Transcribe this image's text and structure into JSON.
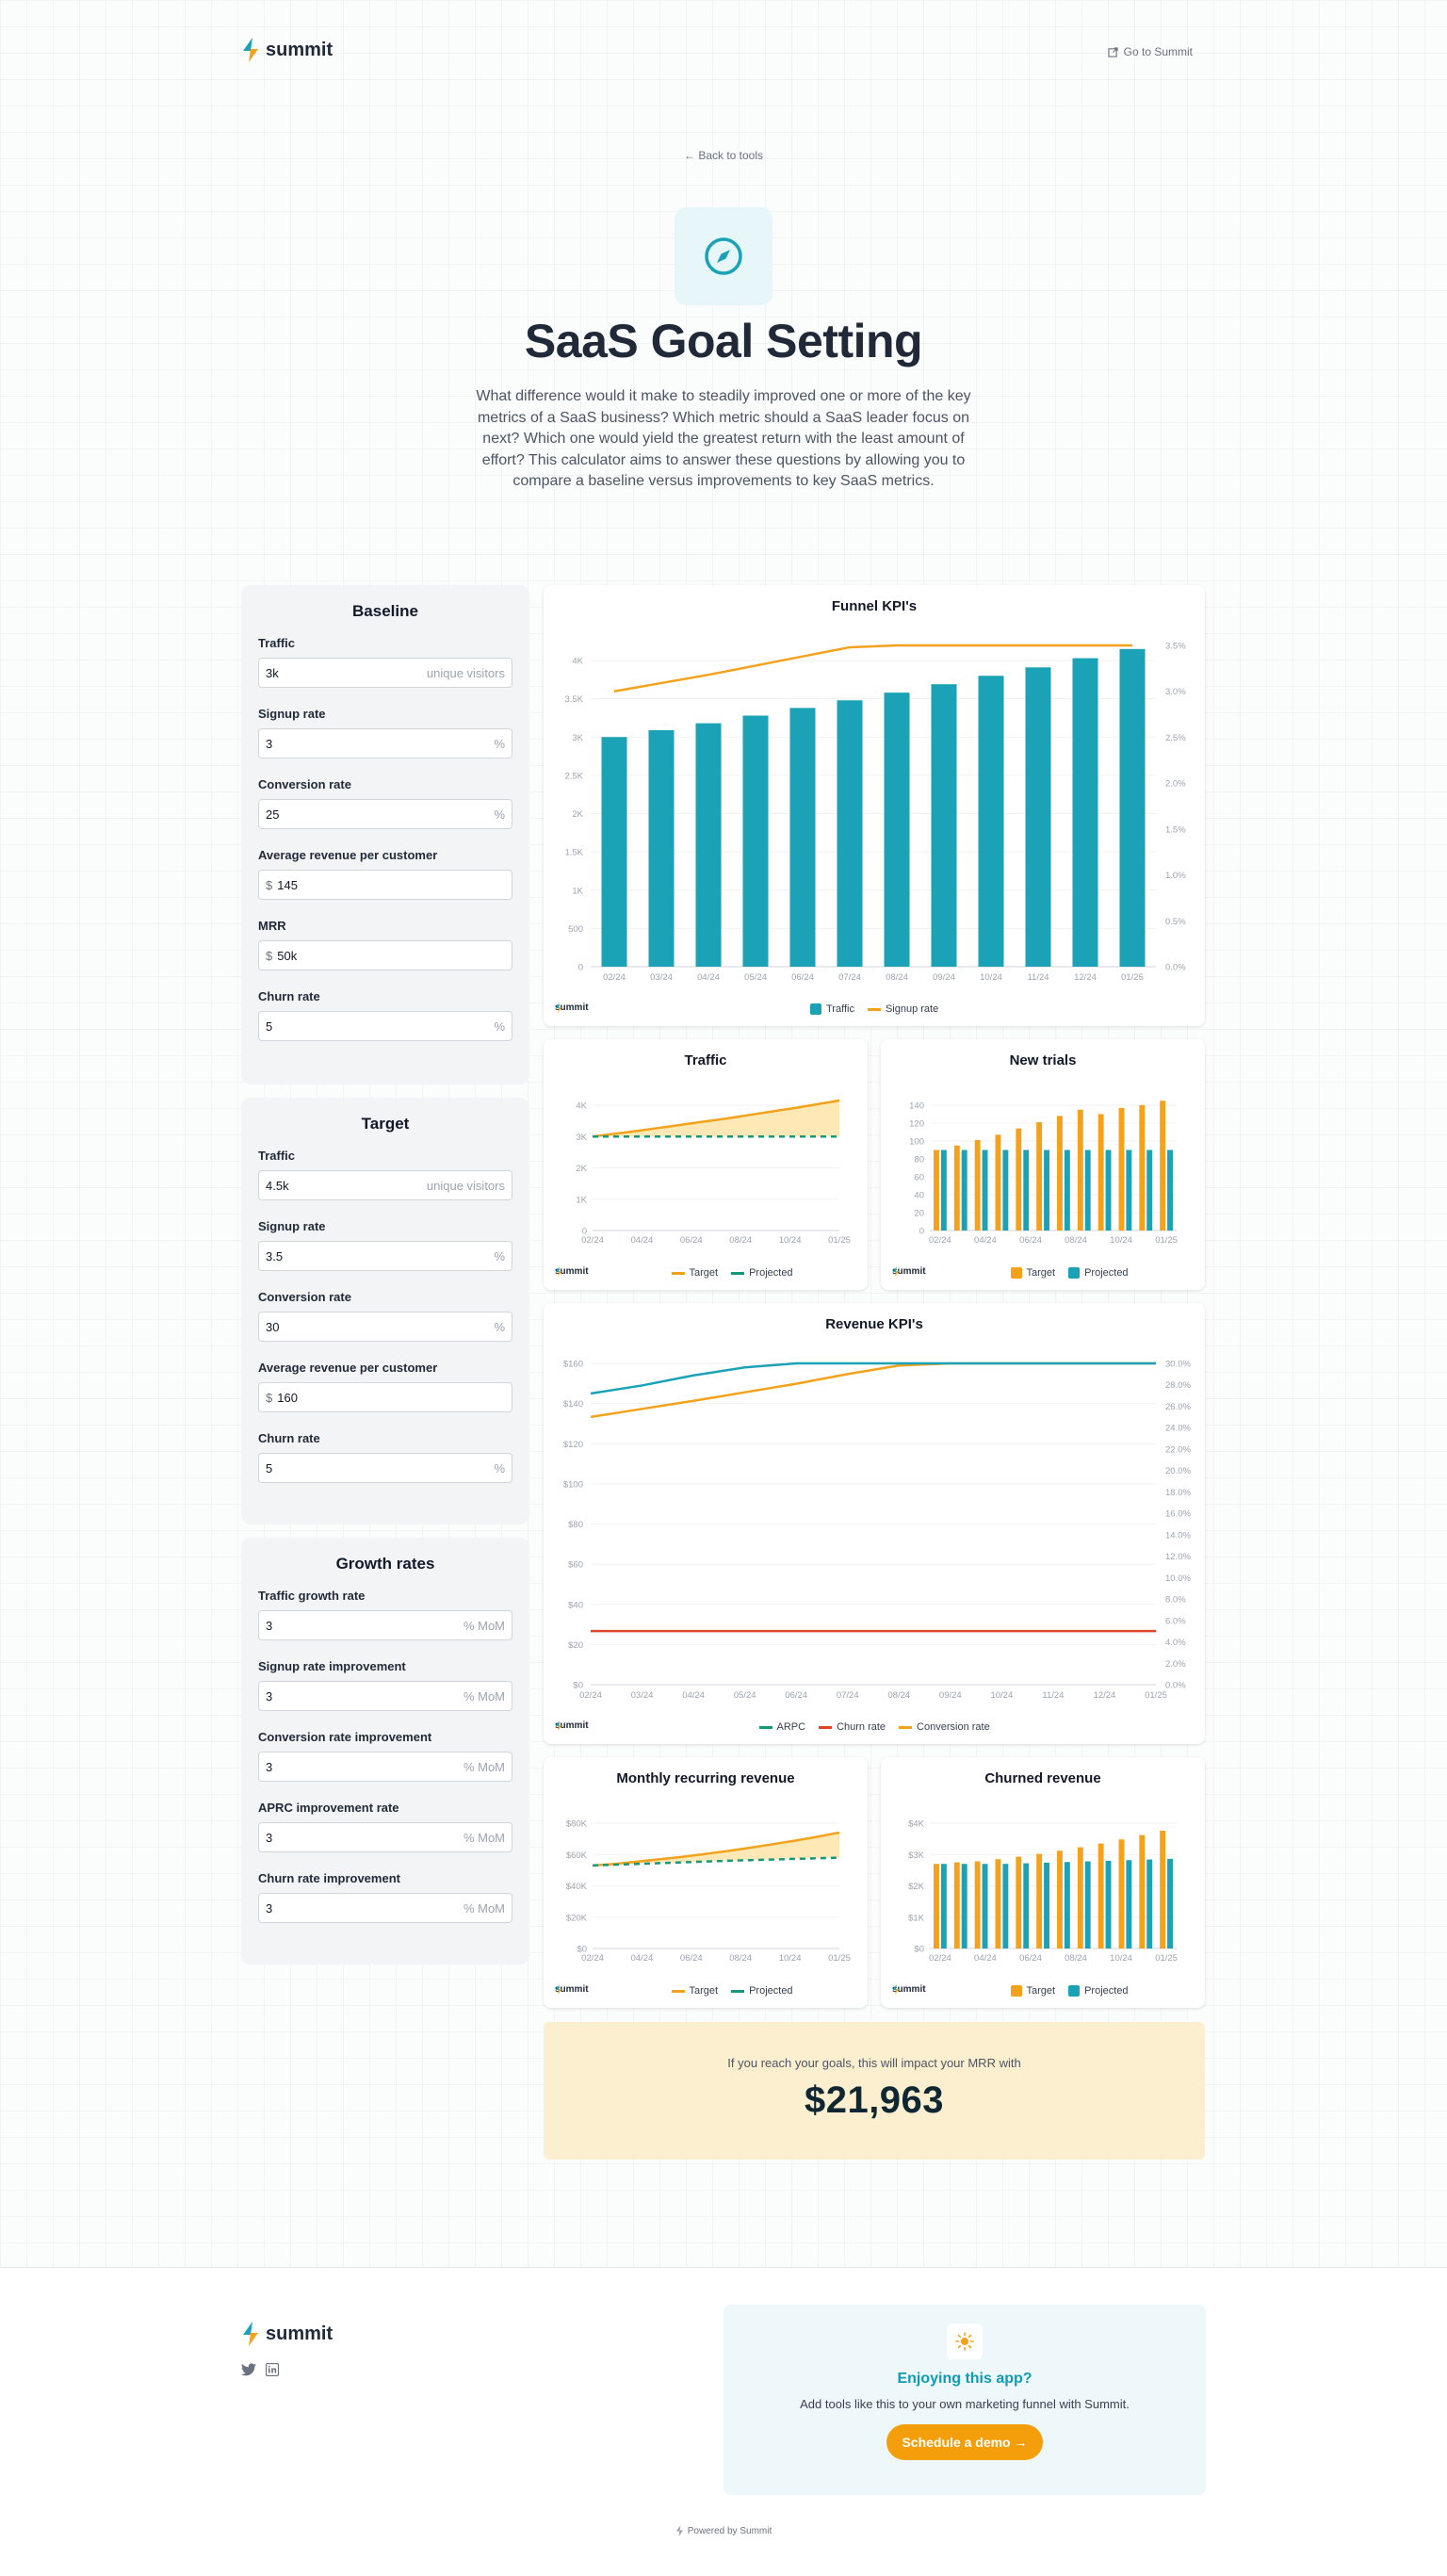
{
  "header": {
    "brand": "summit",
    "goto_label": "Go to Summit"
  },
  "hero": {
    "back_label": "Back to tools",
    "title": "SaaS Goal Setting",
    "description": "What difference would it make to steadily improved one or more of the key metrics of a SaaS business? Which metric should a SaaS leader focus on next? Which one would yield the greatest return with the least amount of effort? This calculator aims to answer these questions by allowing you to compare a baseline versus improvements to key SaaS metrics."
  },
  "baseline": {
    "title": "Baseline",
    "fields": [
      {
        "label": "Traffic",
        "value": "3k",
        "prefix": "",
        "suffix": "unique visitors"
      },
      {
        "label": "Signup rate",
        "value": "3",
        "prefix": "",
        "suffix": "%"
      },
      {
        "label": "Conversion rate",
        "value": "25",
        "prefix": "",
        "suffix": "%"
      },
      {
        "label": "Average revenue per customer",
        "value": "145",
        "prefix": "$",
        "suffix": ""
      },
      {
        "label": "MRR",
        "value": "50k",
        "prefix": "$",
        "suffix": ""
      },
      {
        "label": "Churn rate",
        "value": "5",
        "prefix": "",
        "suffix": "%"
      }
    ]
  },
  "target": {
    "title": "Target",
    "fields": [
      {
        "label": "Traffic",
        "value": "4.5k",
        "prefix": "",
        "suffix": "unique visitors"
      },
      {
        "label": "Signup rate",
        "value": "3.5",
        "prefix": "",
        "suffix": "%"
      },
      {
        "label": "Conversion rate",
        "value": "30",
        "prefix": "",
        "suffix": "%"
      },
      {
        "label": "Average revenue per customer",
        "value": "160",
        "prefix": "$",
        "suffix": ""
      },
      {
        "label": "Churn rate",
        "value": "5",
        "prefix": "",
        "suffix": "%"
      }
    ]
  },
  "growth": {
    "title": "Growth rates",
    "fields": [
      {
        "label": "Traffic growth rate",
        "value": "3",
        "prefix": "",
        "suffix": "% MoM"
      },
      {
        "label": "Signup rate improvement",
        "value": "3",
        "prefix": "",
        "suffix": "% MoM"
      },
      {
        "label": "Conversion rate improvement",
        "value": "3",
        "prefix": "",
        "suffix": "% MoM"
      },
      {
        "label": "APRC improvement rate",
        "value": "3",
        "prefix": "",
        "suffix": "% MoM"
      },
      {
        "label": "Churn rate improvement",
        "value": "3",
        "prefix": "",
        "suffix": "% MoM"
      }
    ]
  },
  "colors": {
    "teal": "#1ba2b6",
    "orange": "#f4a11c",
    "red": "#e0452b",
    "fill": "#fde8b6"
  },
  "chart_data": [
    {
      "id": "funnel",
      "type": "bar",
      "title": "Funnel KPI's",
      "categories": [
        "02/24",
        "03/24",
        "04/24",
        "05/24",
        "06/24",
        "07/24",
        "08/24",
        "09/24",
        "10/24",
        "11/24",
        "12/24",
        "01/25"
      ],
      "series": [
        {
          "name": "Traffic",
          "type": "bar",
          "axis": "left",
          "values": [
            3000,
            3090,
            3180,
            3280,
            3380,
            3480,
            3580,
            3690,
            3800,
            3910,
            4030,
            4150
          ]
        },
        {
          "name": "Signup rate",
          "type": "line",
          "axis": "right",
          "values": [
            3.0,
            3.09,
            3.18,
            3.28,
            3.38,
            3.48,
            3.5,
            3.5,
            3.5,
            3.5,
            3.5,
            3.5
          ]
        }
      ],
      "ylim": [
        0,
        4000
      ],
      "y_ticks": [
        "0",
        "500",
        "1K",
        "1.5K",
        "2K",
        "2.5K",
        "3K",
        "3.5K",
        "4K"
      ],
      "y2lim": [
        0,
        3.5
      ],
      "y2_ticks": [
        "0.0%",
        "0.5%",
        "1.0%",
        "1.5%",
        "2.0%",
        "2.5%",
        "3.0%",
        "3.5%"
      ],
      "legend": "bottom"
    },
    {
      "id": "traffic",
      "type": "area",
      "title": "Traffic",
      "x_ticks": [
        "02/24",
        "04/24",
        "06/24",
        "08/24",
        "10/24",
        "01/25"
      ],
      "series": [
        {
          "name": "Target",
          "values": [
            3000,
            3090,
            3180,
            3280,
            3380,
            3480,
            3580,
            3690,
            3800,
            3910,
            4030,
            4150
          ]
        },
        {
          "name": "Projected",
          "values": [
            3000,
            3000,
            3000,
            3000,
            3000,
            3000,
            3000,
            3000,
            3000,
            3000,
            3000,
            3000
          ]
        }
      ],
      "ylim": [
        0,
        4000
      ],
      "y_ticks": [
        "0",
        "1K",
        "2K",
        "3K",
        "4K"
      ],
      "legend": "bottom"
    },
    {
      "id": "trials",
      "type": "bar",
      "title": "New trials",
      "x_ticks": [
        "02/24",
        "04/24",
        "06/24",
        "08/24",
        "10/24",
        "01/25"
      ],
      "series": [
        {
          "name": "Target",
          "values": [
            90,
            95,
            101,
            107,
            114,
            121,
            128,
            135,
            130,
            137,
            140,
            145
          ]
        },
        {
          "name": "Projected",
          "values": [
            90,
            90,
            90,
            90,
            90,
            90,
            90,
            90,
            90,
            90,
            90,
            90
          ]
        }
      ],
      "ylim": [
        0,
        140
      ],
      "y_ticks": [
        "0",
        "20",
        "40",
        "60",
        "80",
        "100",
        "120",
        "140"
      ],
      "legend": "bottom"
    },
    {
      "id": "revenue",
      "type": "line",
      "title": "Revenue KPI's",
      "categories": [
        "02/24",
        "03/24",
        "04/24",
        "05/24",
        "06/24",
        "07/24",
        "08/24",
        "09/24",
        "10/24",
        "11/24",
        "12/24",
        "01/25"
      ],
      "series": [
        {
          "name": "ARPC",
          "axis": "left",
          "values": [
            145,
            149,
            154,
            158,
            160,
            160,
            160,
            160,
            160,
            160,
            160,
            160
          ]
        },
        {
          "name": "Churn rate",
          "axis": "right",
          "values": [
            5,
            5,
            5,
            5,
            5,
            5,
            5,
            5,
            5,
            5,
            5,
            5
          ]
        },
        {
          "name": "Conversion rate",
          "axis": "right",
          "values": [
            25,
            25.75,
            26.5,
            27.3,
            28.1,
            29,
            29.8,
            30,
            30,
            30,
            30,
            30
          ]
        }
      ],
      "ylim": [
        0,
        160
      ],
      "y_ticks": [
        "$0",
        "$20",
        "$40",
        "$60",
        "$80",
        "$100",
        "$120",
        "$140",
        "$160"
      ],
      "y2lim": [
        0,
        30
      ],
      "y2_ticks": [
        "0.0%",
        "2.0%",
        "4.0%",
        "6.0%",
        "8.0%",
        "10.0%",
        "12.0%",
        "14.0%",
        "16.0%",
        "18.0%",
        "20.0%",
        "22.0%",
        "24.0%",
        "26.0%",
        "28.0%",
        "30.0%"
      ],
      "legend": "bottom"
    },
    {
      "id": "mrr",
      "type": "area",
      "title": "Monthly recurring revenue",
      "x_ticks": [
        "02/24",
        "04/24",
        "06/24",
        "08/24",
        "10/24",
        "01/25"
      ],
      "series": [
        {
          "name": "Target",
          "values": [
            53000,
            54000,
            55500,
            57000,
            58500,
            60300,
            62200,
            64300,
            66500,
            68800,
            71300,
            74000
          ]
        },
        {
          "name": "Projected",
          "values": [
            53000,
            53500,
            54000,
            54500,
            55000,
            55500,
            56000,
            56400,
            56800,
            57200,
            57600,
            58000
          ]
        }
      ],
      "ylim": [
        0,
        80000
      ],
      "y_ticks": [
        "$0",
        "$20K",
        "$40K",
        "$60K",
        "$80K"
      ],
      "legend": "bottom"
    },
    {
      "id": "churned",
      "type": "bar",
      "title": "Churned revenue",
      "x_ticks": [
        "02/24",
        "04/24",
        "06/24",
        "08/24",
        "10/24",
        "01/25"
      ],
      "series": [
        {
          "name": "Target",
          "values": [
            2700,
            2750,
            2780,
            2850,
            2930,
            3020,
            3120,
            3230,
            3350,
            3480,
            3620,
            3760
          ]
        },
        {
          "name": "Projected",
          "values": [
            2700,
            2700,
            2700,
            2700,
            2720,
            2740,
            2760,
            2780,
            2800,
            2820,
            2840,
            2860
          ]
        }
      ],
      "ylim": [
        0,
        4000
      ],
      "y_ticks": [
        "$0",
        "$1K",
        "$2K",
        "$3K",
        "$4K"
      ],
      "legend": "bottom"
    }
  ],
  "result": {
    "label": "If you reach your goals, this will impact your MRR with",
    "amount": "$21,963"
  },
  "footer": {
    "brand": "summit",
    "cta_title": "Enjoying this app?",
    "cta_text": "Add tools like this to your own marketing funnel with Summit.",
    "cta_button": "Schedule a demo →",
    "powered": "Powered by Summit"
  }
}
